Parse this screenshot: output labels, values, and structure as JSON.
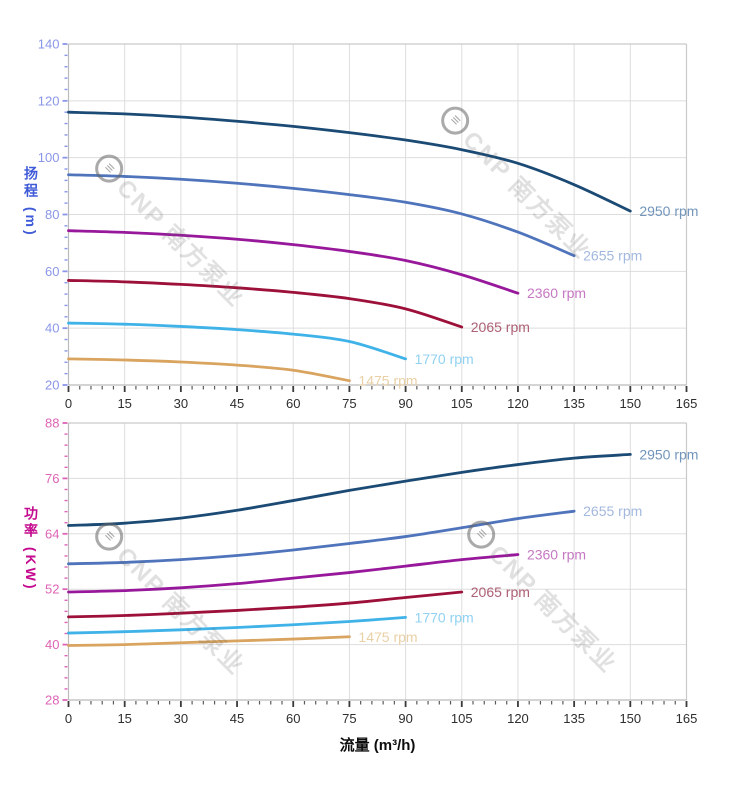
{
  "watermark": {
    "text": "CNP 南方泵业"
  },
  "styles": {
    "grid_color": "#dddddd",
    "frame_color": "#c9c9c9",
    "axis_line_color": "#bbbbbb",
    "x_tick_color": "#3a3a3a",
    "x_minor_tick_color": "#5a5a5a",
    "x_tick_label_color": "#2e2e2e"
  },
  "chart_data": [
    {
      "type": "line",
      "name": "head-curve-chart",
      "title": "",
      "xlabel": "流量 (m³/h)",
      "ylabel": "扬程 (m)",
      "xlim": [
        0,
        165
      ],
      "x_major_step": 15,
      "x_minor_step": 3,
      "ylim": [
        20,
        140
      ],
      "y_major_step": 20,
      "y_minor_step": 4,
      "grid": true,
      "legend": "curve-end-labels",
      "y_tick_label_color": "#8b96e8",
      "y_tick_color": "#8b96e8",
      "y_title_color": "#3f5bd8",
      "series": [
        {
          "name": "2950 rpm",
          "color": "#1b4a74",
          "label_color": "#7295bb",
          "x": [
            0,
            15,
            30,
            45,
            60,
            75,
            90,
            105,
            120,
            135,
            150
          ],
          "y": [
            116,
            115.4,
            114.3,
            112.8,
            111,
            108.8,
            106.2,
            102.8,
            98,
            90.5,
            81.2
          ]
        },
        {
          "name": "2655 rpm",
          "color": "#4f74bc",
          "label_color": "#a3b8de",
          "x": [
            0,
            15,
            30,
            45,
            60,
            75,
            90,
            105,
            120,
            135
          ],
          "y": [
            94,
            93.4,
            92.4,
            91,
            89.2,
            87,
            84.3,
            80.2,
            73.8,
            65.5
          ]
        },
        {
          "name": "2360 rpm",
          "color": "#97189a",
          "label_color": "#c678c3",
          "x": [
            0,
            15,
            30,
            45,
            60,
            75,
            90,
            105,
            120
          ],
          "y": [
            74.3,
            73.7,
            72.7,
            71.3,
            69.4,
            67,
            63.8,
            58.8,
            52.3
          ]
        },
        {
          "name": "2065 rpm",
          "color": "#9d1039",
          "label_color": "#ad5f74",
          "x": [
            0,
            15,
            30,
            45,
            60,
            75,
            90,
            105
          ],
          "y": [
            56.8,
            56.3,
            55.4,
            54.2,
            52.6,
            50.4,
            46.8,
            40.4
          ]
        },
        {
          "name": "1770 rpm",
          "color": "#3fb2e8",
          "label_color": "#90d2f2",
          "x": [
            0,
            15,
            30,
            45,
            60,
            75,
            90
          ],
          "y": [
            41.8,
            41.4,
            40.6,
            39.5,
            37.9,
            35.3,
            29.2
          ]
        },
        {
          "name": "1475 rpm",
          "color": "#d9a45f",
          "label_color": "#ead0a5",
          "x": [
            0,
            15,
            30,
            45,
            60,
            75
          ],
          "y": [
            29.2,
            28.8,
            28.1,
            27,
            25.2,
            21.5
          ]
        }
      ]
    },
    {
      "type": "line",
      "name": "power-curve-chart",
      "title": "",
      "xlabel": "流量 (m³/h)",
      "ylabel": "功率 (KW)",
      "xlim": [
        0,
        165
      ],
      "x_major_step": 15,
      "x_minor_step": 3,
      "ylim": [
        28,
        88
      ],
      "y_major_step": 12,
      "y_minor_step": 2.4,
      "grid": true,
      "legend": "curve-end-labels",
      "y_tick_label_color": "#dd64b6",
      "y_tick_color": "#dd64b6",
      "y_title_color": "#c40a8e",
      "series": [
        {
          "name": "2950 rpm",
          "color": "#1b4a74",
          "label_color": "#7295bb",
          "x": [
            0,
            15,
            30,
            45,
            60,
            75,
            90,
            105,
            120,
            135,
            150
          ],
          "y": [
            65.8,
            66.3,
            67.4,
            69.1,
            71.2,
            73.4,
            75.4,
            77.3,
            79,
            80.4,
            81.2
          ]
        },
        {
          "name": "2655 rpm",
          "color": "#4f74bc",
          "label_color": "#a3b8de",
          "x": [
            0,
            15,
            30,
            45,
            60,
            75,
            90,
            105,
            120,
            135
          ],
          "y": [
            57.5,
            57.8,
            58.4,
            59.3,
            60.5,
            61.9,
            63.4,
            65.3,
            67.3,
            68.9
          ]
        },
        {
          "name": "2360 rpm",
          "color": "#97189a",
          "label_color": "#c678c3",
          "x": [
            0,
            15,
            30,
            45,
            60,
            75,
            90,
            105,
            120
          ],
          "y": [
            51.4,
            51.7,
            52.3,
            53.2,
            54.4,
            55.6,
            57,
            58.4,
            59.5
          ]
        },
        {
          "name": "2065 rpm",
          "color": "#9d1039",
          "label_color": "#ad5f74",
          "x": [
            0,
            15,
            30,
            45,
            60,
            75,
            90,
            105
          ],
          "y": [
            46,
            46.3,
            46.8,
            47.4,
            48.1,
            49,
            50.2,
            51.4
          ]
        },
        {
          "name": "1770 rpm",
          "color": "#3fb2e8",
          "label_color": "#90d2f2",
          "x": [
            0,
            15,
            30,
            45,
            60,
            75,
            90
          ],
          "y": [
            42.5,
            42.8,
            43.2,
            43.7,
            44.3,
            45,
            45.9
          ]
        },
        {
          "name": "1475 rpm",
          "color": "#d9a45f",
          "label_color": "#ead0a5",
          "x": [
            0,
            15,
            30,
            45,
            60,
            75
          ],
          "y": [
            39.8,
            40,
            40.4,
            40.8,
            41.2,
            41.7
          ]
        }
      ]
    }
  ]
}
